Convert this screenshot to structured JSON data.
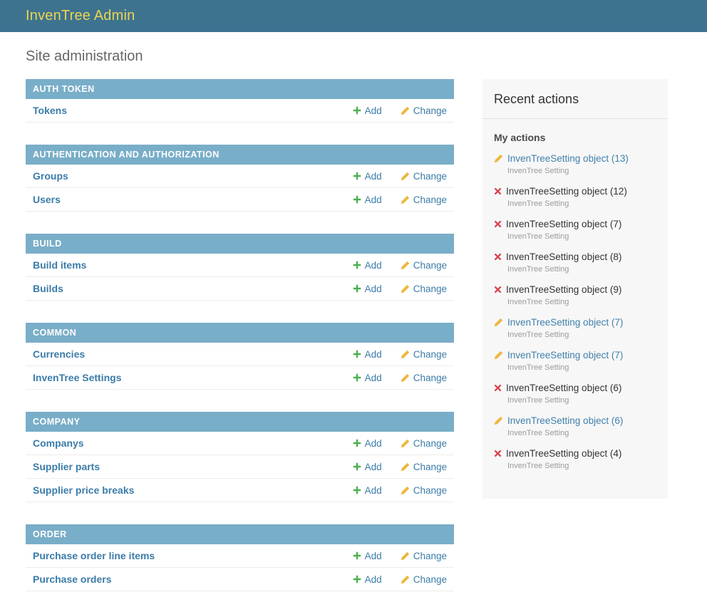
{
  "header": {
    "brand": "InvenTree Admin"
  },
  "page_title": "Site administration",
  "actions": {
    "add_label": "Add",
    "change_label": "Change"
  },
  "colors": {
    "header_bg": "#3e7390",
    "brand_text": "#ecd64e",
    "caption_bg": "#79aec8",
    "link_blue": "#3b7ca8",
    "add_green": "#4caf50",
    "pencil_gold": "#eeb73d",
    "delete_red": "#d9414b",
    "panel_bg": "#f7f7f7"
  },
  "modules": [
    {
      "caption": "AUTH TOKEN",
      "models": [
        "Tokens"
      ]
    },
    {
      "caption": "AUTHENTICATION AND AUTHORIZATION",
      "models": [
        "Groups",
        "Users"
      ]
    },
    {
      "caption": "BUILD",
      "models": [
        "Build items",
        "Builds"
      ]
    },
    {
      "caption": "COMMON",
      "models": [
        "Currencies",
        "InvenTree Settings"
      ]
    },
    {
      "caption": "COMPANY",
      "models": [
        "Companys",
        "Supplier parts",
        "Supplier price breaks"
      ]
    },
    {
      "caption": "ORDER",
      "models": [
        "Purchase order line items",
        "Purchase orders"
      ]
    }
  ],
  "sidebar": {
    "title": "Recent actions",
    "group_title": "My actions",
    "items": [
      {
        "action": "change",
        "label": "InvenTreeSetting object (13)",
        "meta": "InvenTree Setting"
      },
      {
        "action": "delete",
        "label": "InvenTreeSetting object (12)",
        "meta": "InvenTree Setting"
      },
      {
        "action": "delete",
        "label": "InvenTreeSetting object (7)",
        "meta": "InvenTree Setting"
      },
      {
        "action": "delete",
        "label": "InvenTreeSetting object (8)",
        "meta": "InvenTree Setting"
      },
      {
        "action": "delete",
        "label": "InvenTreeSetting object (9)",
        "meta": "InvenTree Setting"
      },
      {
        "action": "change",
        "label": "InvenTreeSetting object (7)",
        "meta": "InvenTree Setting"
      },
      {
        "action": "change",
        "label": "InvenTreeSetting object (7)",
        "meta": "InvenTree Setting"
      },
      {
        "action": "delete",
        "label": "InvenTreeSetting object (6)",
        "meta": "InvenTree Setting"
      },
      {
        "action": "change",
        "label": "InvenTreeSetting object (6)",
        "meta": "InvenTree Setting"
      },
      {
        "action": "delete",
        "label": "InvenTreeSetting object (4)",
        "meta": "InvenTree Setting"
      }
    ]
  }
}
